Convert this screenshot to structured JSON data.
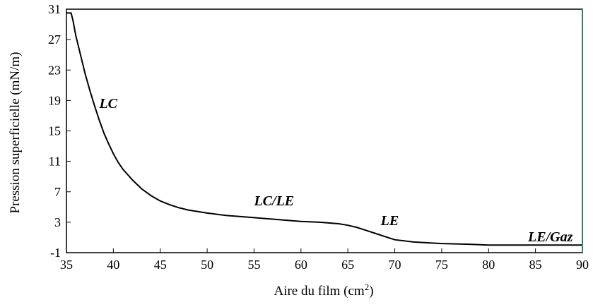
{
  "chart_data": {
    "type": "line",
    "xlabel": "Aire du film (cm",
    "xlabel_sup": "2",
    "xlabel_end": ")",
    "ylabel": "Pression superficielle (mN/m)",
    "xlim": [
      35,
      90
    ],
    "ylim": [
      -1,
      31
    ],
    "x_ticks": [
      "35",
      "40",
      "45",
      "50",
      "55",
      "60",
      "65",
      "70",
      "75",
      "80",
      "85",
      "90"
    ],
    "y_ticks": [
      "-1",
      "3",
      "7",
      "11",
      "15",
      "19",
      "23",
      "27",
      "31"
    ],
    "grid": false,
    "series": [
      {
        "x": [
          35.0,
          35.5,
          35.7,
          36.0,
          36.5,
          37.0,
          37.5,
          38.0,
          38.5,
          39.0,
          39.5,
          40.0,
          40.5,
          41.0,
          42.0,
          43.0,
          44.0,
          45.0,
          46.0,
          47.0,
          48.0,
          50.0,
          52.0,
          55.0,
          58.0,
          60.0,
          62.0,
          64.0,
          65.0,
          66.0,
          67.0,
          68.0,
          69.0,
          70.0,
          72.0,
          75.0,
          78.0,
          80.0,
          85.0,
          90.0
        ],
        "y": [
          30.5,
          30.5,
          29.5,
          27.5,
          25.0,
          22.5,
          20.3,
          18.3,
          16.4,
          14.7,
          13.3,
          12.0,
          10.9,
          10.0,
          8.6,
          7.4,
          6.5,
          5.8,
          5.3,
          4.9,
          4.6,
          4.2,
          3.9,
          3.6,
          3.3,
          3.1,
          3.0,
          2.8,
          2.6,
          2.3,
          1.9,
          1.5,
          1.1,
          0.7,
          0.4,
          0.2,
          0.1,
          0.0,
          0.0,
          0.0
        ]
      }
    ],
    "annotations": [
      {
        "text": "LC",
        "x": 38.5,
        "y": 18.0
      },
      {
        "text": "LC/LE",
        "x": 55.0,
        "y": 5.2
      },
      {
        "text": "LE",
        "x": 68.5,
        "y": 2.6
      },
      {
        "text": "LE/Gaz",
        "x": 84.2,
        "y": 0.5
      }
    ]
  }
}
